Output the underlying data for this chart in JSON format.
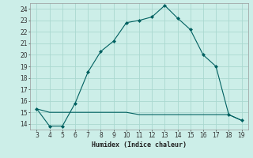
{
  "xlabel": "Humidex (Indice chaleur)",
  "x_upper": [
    3,
    4,
    5,
    6,
    7,
    8,
    9,
    10,
    11,
    12,
    13,
    14,
    15,
    16,
    17,
    18,
    19
  ],
  "y_upper": [
    15.3,
    13.8,
    13.8,
    15.8,
    18.5,
    20.3,
    21.2,
    22.8,
    23.0,
    23.3,
    24.3,
    23.2,
    22.2,
    20.0,
    19.0,
    14.8,
    14.3
  ],
  "x_lower": [
    3,
    4,
    5,
    6,
    7,
    8,
    9,
    10,
    11,
    12,
    13,
    14,
    15,
    16,
    17,
    18,
    19
  ],
  "y_lower": [
    15.3,
    15.0,
    15.0,
    15.0,
    15.0,
    15.0,
    15.0,
    15.0,
    14.8,
    14.8,
    14.8,
    14.8,
    14.8,
    14.8,
    14.8,
    14.8,
    14.3
  ],
  "line_color": "#006060",
  "marker_color": "#006060",
  "bg_color": "#cceee8",
  "grid_color": "#aad8d0",
  "xlim": [
    2.5,
    19.5
  ],
  "ylim": [
    13.5,
    24.5
  ],
  "xticks": [
    3,
    4,
    5,
    6,
    7,
    8,
    9,
    10,
    11,
    12,
    13,
    14,
    15,
    16,
    17,
    18,
    19
  ],
  "yticks": [
    14,
    15,
    16,
    17,
    18,
    19,
    20,
    21,
    22,
    23,
    24
  ]
}
